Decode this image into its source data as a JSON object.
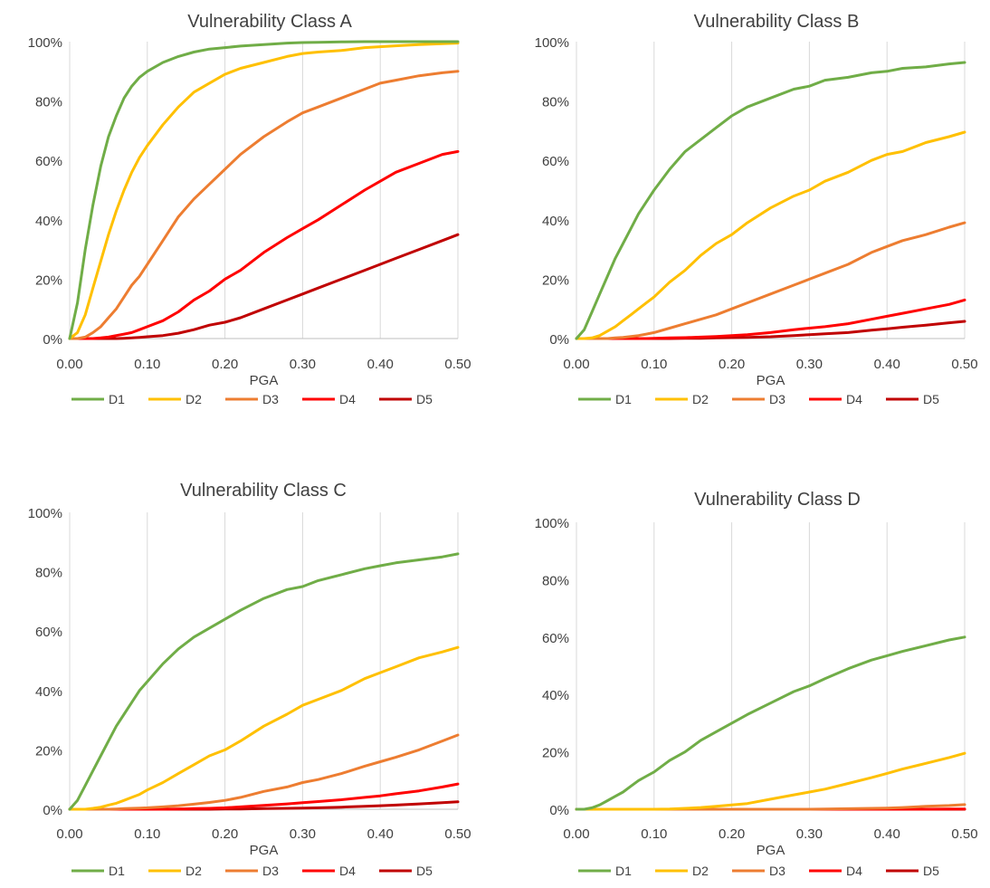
{
  "colors": {
    "D1": "#70ad47",
    "D2": "#ffc000",
    "D3": "#ed7d31",
    "D4": "#ff0000",
    "D5": "#c00000",
    "grid": "#d9d9d9",
    "text": "#404040"
  },
  "chart_data": [
    {
      "type": "line",
      "title": "Vulnerability Class A",
      "xlabel": "PGA",
      "ylabel": "",
      "xlim": [
        0,
        0.5
      ],
      "ylim": [
        0,
        1
      ],
      "xticks": [
        "0.00",
        "0.10",
        "0.20",
        "0.30",
        "0.40",
        "0.50"
      ],
      "yticks": [
        "0%",
        "20%",
        "40%",
        "60%",
        "80%",
        "100%"
      ],
      "grid": "vertical",
      "legend": "bottom",
      "x": [
        0,
        0.01,
        0.02,
        0.03,
        0.04,
        0.05,
        0.06,
        0.07,
        0.08,
        0.09,
        0.1,
        0.12,
        0.14,
        0.16,
        0.18,
        0.2,
        0.22,
        0.25,
        0.28,
        0.3,
        0.32,
        0.35,
        0.38,
        0.4,
        0.42,
        0.45,
        0.48,
        0.5
      ],
      "series": [
        {
          "name": "D1",
          "values": [
            0,
            0.12,
            0.3,
            0.45,
            0.58,
            0.68,
            0.75,
            0.81,
            0.85,
            0.88,
            0.9,
            0.93,
            0.95,
            0.965,
            0.975,
            0.98,
            0.985,
            0.99,
            0.995,
            0.997,
            0.998,
            0.999,
            1.0,
            1.0,
            1.0,
            1.0,
            1.0,
            1.0
          ]
        },
        {
          "name": "D2",
          "values": [
            0,
            0.02,
            0.08,
            0.17,
            0.26,
            0.35,
            0.43,
            0.5,
            0.56,
            0.61,
            0.65,
            0.72,
            0.78,
            0.83,
            0.86,
            0.89,
            0.91,
            0.93,
            0.95,
            0.96,
            0.965,
            0.97,
            0.98,
            0.983,
            0.986,
            0.99,
            0.993,
            0.995
          ]
        },
        {
          "name": "D3",
          "values": [
            0,
            0,
            0.005,
            0.02,
            0.04,
            0.07,
            0.1,
            0.14,
            0.18,
            0.21,
            0.25,
            0.33,
            0.41,
            0.47,
            0.52,
            0.57,
            0.62,
            0.68,
            0.73,
            0.76,
            0.78,
            0.81,
            0.84,
            0.86,
            0.87,
            0.885,
            0.895,
            0.9
          ]
        },
        {
          "name": "D4",
          "values": [
            0,
            0,
            0,
            0,
            0.002,
            0.005,
            0.01,
            0.015,
            0.02,
            0.03,
            0.04,
            0.06,
            0.09,
            0.13,
            0.16,
            0.2,
            0.23,
            0.29,
            0.34,
            0.37,
            0.4,
            0.45,
            0.5,
            0.53,
            0.56,
            0.59,
            0.62,
            0.63
          ]
        },
        {
          "name": "D5",
          "values": [
            0,
            0,
            0,
            0,
            0,
            0,
            0,
            0.001,
            0.002,
            0.004,
            0.006,
            0.01,
            0.018,
            0.03,
            0.045,
            0.055,
            0.07,
            0.1,
            0.13,
            0.15,
            0.17,
            0.2,
            0.23,
            0.25,
            0.27,
            0.3,
            0.33,
            0.35
          ]
        }
      ]
    },
    {
      "type": "line",
      "title": "Vulnerability Class B",
      "xlabel": "PGA",
      "ylabel": "",
      "xlim": [
        0,
        0.5
      ],
      "ylim": [
        0,
        1
      ],
      "xticks": [
        "0.00",
        "0.10",
        "0.20",
        "0.30",
        "0.40",
        "0.50"
      ],
      "yticks": [
        "0%",
        "20%",
        "40%",
        "60%",
        "80%",
        "100%"
      ],
      "grid": "vertical",
      "legend": "bottom",
      "x": [
        0,
        0.01,
        0.02,
        0.03,
        0.04,
        0.05,
        0.06,
        0.07,
        0.08,
        0.09,
        0.1,
        0.12,
        0.14,
        0.16,
        0.18,
        0.2,
        0.22,
        0.25,
        0.28,
        0.3,
        0.32,
        0.35,
        0.38,
        0.4,
        0.42,
        0.45,
        0.48,
        0.5
      ],
      "series": [
        {
          "name": "D1",
          "values": [
            0,
            0.03,
            0.09,
            0.15,
            0.21,
            0.27,
            0.32,
            0.37,
            0.42,
            0.46,
            0.5,
            0.57,
            0.63,
            0.67,
            0.71,
            0.75,
            0.78,
            0.81,
            0.84,
            0.85,
            0.87,
            0.88,
            0.895,
            0.9,
            0.91,
            0.915,
            0.925,
            0.93
          ]
        },
        {
          "name": "D2",
          "values": [
            0,
            0,
            0.002,
            0.01,
            0.025,
            0.04,
            0.06,
            0.08,
            0.1,
            0.12,
            0.14,
            0.19,
            0.23,
            0.28,
            0.32,
            0.35,
            0.39,
            0.44,
            0.48,
            0.5,
            0.53,
            0.56,
            0.6,
            0.62,
            0.63,
            0.66,
            0.68,
            0.695
          ]
        },
        {
          "name": "D3",
          "values": [
            0,
            0,
            0,
            0,
            0,
            0.002,
            0.004,
            0.007,
            0.01,
            0.015,
            0.02,
            0.035,
            0.05,
            0.065,
            0.08,
            0.1,
            0.12,
            0.15,
            0.18,
            0.2,
            0.22,
            0.25,
            0.29,
            0.31,
            0.33,
            0.35,
            0.375,
            0.39
          ]
        },
        {
          "name": "D4",
          "values": [
            0,
            0,
            0,
            0,
            0,
            0,
            0,
            0,
            0,
            0,
            0.001,
            0.002,
            0.003,
            0.005,
            0.007,
            0.01,
            0.013,
            0.02,
            0.03,
            0.035,
            0.04,
            0.05,
            0.065,
            0.075,
            0.085,
            0.1,
            0.115,
            0.13
          ]
        },
        {
          "name": "D5",
          "values": [
            0,
            0,
            0,
            0,
            0,
            0,
            0,
            0,
            0,
            0,
            0,
            0,
            0.001,
            0.001,
            0.002,
            0.003,
            0.004,
            0.006,
            0.01,
            0.013,
            0.016,
            0.02,
            0.028,
            0.033,
            0.038,
            0.045,
            0.053,
            0.058
          ]
        }
      ]
    },
    {
      "type": "line",
      "title": "Vulnerability Class C",
      "xlabel": "PGA",
      "ylabel": "",
      "xlim": [
        0,
        0.5
      ],
      "ylim": [
        0,
        1
      ],
      "xticks": [
        "0.00",
        "0.10",
        "0.20",
        "0.30",
        "0.40",
        "0.50"
      ],
      "yticks": [
        "0%",
        "20%",
        "40%",
        "60%",
        "80%",
        "100%"
      ],
      "grid": "vertical",
      "legend": "bottom",
      "x": [
        0,
        0.01,
        0.02,
        0.03,
        0.04,
        0.05,
        0.06,
        0.07,
        0.08,
        0.09,
        0.1,
        0.12,
        0.14,
        0.16,
        0.18,
        0.2,
        0.22,
        0.25,
        0.28,
        0.3,
        0.32,
        0.35,
        0.38,
        0.4,
        0.42,
        0.45,
        0.48,
        0.5
      ],
      "series": [
        {
          "name": "D1",
          "values": [
            0,
            0.03,
            0.08,
            0.13,
            0.18,
            0.23,
            0.28,
            0.32,
            0.36,
            0.4,
            0.43,
            0.49,
            0.54,
            0.58,
            0.61,
            0.64,
            0.67,
            0.71,
            0.74,
            0.75,
            0.77,
            0.79,
            0.81,
            0.82,
            0.83,
            0.84,
            0.85,
            0.86
          ]
        },
        {
          "name": "D2",
          "values": [
            0,
            0,
            0,
            0.003,
            0.007,
            0.014,
            0.02,
            0.03,
            0.04,
            0.05,
            0.065,
            0.09,
            0.12,
            0.15,
            0.18,
            0.2,
            0.23,
            0.28,
            0.32,
            0.35,
            0.37,
            0.4,
            0.44,
            0.46,
            0.48,
            0.51,
            0.53,
            0.545
          ]
        },
        {
          "name": "D3",
          "values": [
            0,
            0,
            0,
            0,
            0,
            0,
            0.001,
            0.002,
            0.003,
            0.004,
            0.005,
            0.008,
            0.012,
            0.017,
            0.023,
            0.03,
            0.04,
            0.06,
            0.075,
            0.09,
            0.1,
            0.12,
            0.145,
            0.16,
            0.175,
            0.2,
            0.23,
            0.25
          ]
        },
        {
          "name": "D4",
          "values": [
            0,
            0,
            0,
            0,
            0,
            0,
            0,
            0,
            0,
            0,
            0,
            0,
            0.001,
            0.002,
            0.003,
            0.005,
            0.008,
            0.013,
            0.018,
            0.022,
            0.026,
            0.032,
            0.04,
            0.045,
            0.052,
            0.062,
            0.075,
            0.085
          ]
        },
        {
          "name": "D5",
          "values": [
            0,
            0,
            0,
            0,
            0,
            0,
            0,
            0,
            0,
            0,
            0,
            0,
            0,
            0,
            0,
            0.001,
            0.001,
            0.002,
            0.003,
            0.004,
            0.005,
            0.007,
            0.01,
            0.012,
            0.014,
            0.018,
            0.022,
            0.025
          ]
        }
      ]
    },
    {
      "type": "line",
      "title": "Vulnerability Class D",
      "xlabel": "PGA",
      "ylabel": "",
      "xlim": [
        0,
        0.5
      ],
      "ylim": [
        0,
        1
      ],
      "xticks": [
        "0.00",
        "0.10",
        "0.20",
        "0.30",
        "0.40",
        "0.50"
      ],
      "yticks": [
        "0%",
        "20%",
        "40%",
        "60%",
        "80%",
        "100%"
      ],
      "grid": "vertical",
      "legend": "bottom",
      "x": [
        0,
        0.01,
        0.02,
        0.03,
        0.04,
        0.05,
        0.06,
        0.07,
        0.08,
        0.09,
        0.1,
        0.12,
        0.14,
        0.16,
        0.18,
        0.2,
        0.22,
        0.25,
        0.28,
        0.3,
        0.32,
        0.35,
        0.38,
        0.4,
        0.42,
        0.45,
        0.48,
        0.5
      ],
      "series": [
        {
          "name": "D1",
          "values": [
            0,
            0,
            0.005,
            0.015,
            0.03,
            0.045,
            0.06,
            0.08,
            0.1,
            0.115,
            0.13,
            0.17,
            0.2,
            0.24,
            0.27,
            0.3,
            0.33,
            0.37,
            0.41,
            0.43,
            0.455,
            0.49,
            0.52,
            0.535,
            0.55,
            0.57,
            0.59,
            0.6
          ]
        },
        {
          "name": "D2",
          "values": [
            0,
            0,
            0,
            0,
            0,
            0,
            0,
            0,
            0,
            0,
            0,
            0.001,
            0.003,
            0.006,
            0.01,
            0.015,
            0.02,
            0.035,
            0.05,
            0.06,
            0.07,
            0.09,
            0.11,
            0.125,
            0.14,
            0.16,
            0.18,
            0.195
          ]
        },
        {
          "name": "D3",
          "values": [
            0,
            0,
            0,
            0,
            0,
            0,
            0,
            0,
            0,
            0,
            0,
            0,
            0,
            0,
            0,
            0,
            0,
            0,
            0,
            0,
            0.001,
            0.002,
            0.003,
            0.004,
            0.006,
            0.01,
            0.013,
            0.016
          ]
        },
        {
          "name": "D4",
          "values": [
            0,
            0,
            0,
            0,
            0,
            0,
            0,
            0,
            0,
            0,
            0,
            0,
            0,
            0,
            0,
            0,
            0,
            0,
            0,
            0,
            0,
            0,
            0,
            0,
            0,
            0,
            0.001,
            0.001
          ]
        },
        {
          "name": "D5",
          "values": [
            0,
            0,
            0,
            0,
            0,
            0,
            0,
            0,
            0,
            0,
            0,
            0,
            0,
            0,
            0,
            0,
            0,
            0,
            0,
            0,
            0,
            0,
            0,
            0,
            0,
            0,
            0,
            0
          ]
        }
      ]
    }
  ]
}
